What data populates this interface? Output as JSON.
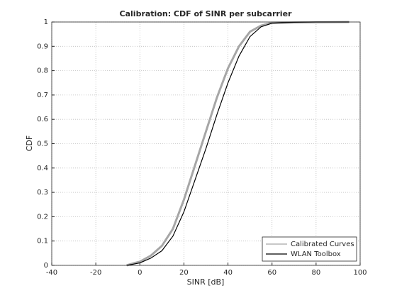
{
  "chart_data": {
    "type": "line",
    "title": "Calibration: CDF of SINR per subcarrier",
    "x_label": "SINR [dB]",
    "y_label": "CDF",
    "x": [
      -6,
      -3,
      0,
      5,
      10,
      15,
      20,
      25,
      30,
      35,
      40,
      45,
      50,
      55,
      60,
      70,
      80,
      95
    ],
    "series": [
      {
        "name": "Calibrated Curves",
        "color": "#a6a6a6",
        "values": [
          0,
          0.008,
          0.015,
          0.04,
          0.08,
          0.15,
          0.27,
          0.41,
          0.55,
          0.69,
          0.81,
          0.9,
          0.96,
          0.985,
          0.997,
          0.998,
          0.999,
          1
        ]
      },
      {
        "name": "WLAN Toolbox",
        "color": "#000000",
        "values": [
          0,
          0.005,
          0.01,
          0.03,
          0.06,
          0.12,
          0.22,
          0.35,
          0.48,
          0.62,
          0.75,
          0.86,
          0.94,
          0.98,
          0.995,
          0.999,
          1,
          1
        ]
      }
    ],
    "xlim": [
      -40,
      100
    ],
    "xticks": [
      -40,
      -20,
      0,
      20,
      40,
      60,
      80,
      100
    ],
    "ylim": [
      0,
      1
    ],
    "yticks": [
      0,
      0.1,
      0.2,
      0.3,
      0.4,
      0.5,
      0.6,
      0.7,
      0.8,
      0.9,
      1
    ],
    "grid": true,
    "legend": "lower-right"
  }
}
